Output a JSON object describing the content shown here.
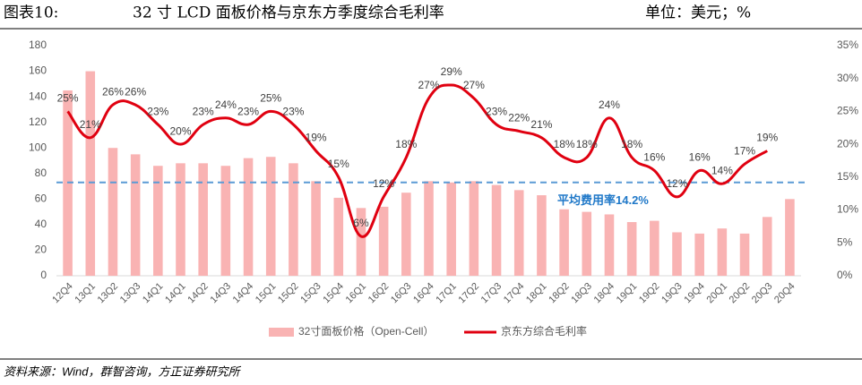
{
  "chart_data": {
    "type": "combo",
    "figure_label": "图表10:",
    "title": "32 寸 LCD 面板价格与京东方季度综合毛利率",
    "unit_note": "单位：美元；%",
    "source": "资料来源：Wind，群智咨询，方正证券研究所",
    "categories": [
      "12Q4",
      "13Q1",
      "13Q2",
      "13Q3",
      "14Q1",
      "14Q1",
      "14Q2",
      "14Q3",
      "14Q4",
      "15Q1",
      "15Q2",
      "15Q3",
      "15Q4",
      "16Q1",
      "16Q2",
      "16Q3",
      "16Q4",
      "17Q1",
      "17Q2",
      "17Q3",
      "17Q4",
      "18Q1",
      "18Q2",
      "18Q3",
      "18Q4",
      "19Q1",
      "19Q2",
      "19Q3",
      "19Q4",
      "20Q1",
      "20Q2",
      "20Q3",
      "20Q4"
    ],
    "series": [
      {
        "name": "32寸面板价格（Open-Cell）",
        "type": "bar",
        "color": "#f9b3b3",
        "values": [
          145,
          160,
          100,
          95,
          86,
          88,
          88,
          86,
          92,
          93,
          88,
          74,
          61,
          53,
          54,
          65,
          74,
          73,
          74,
          71,
          67,
          63,
          52,
          50,
          48,
          42,
          43,
          34,
          33,
          37,
          33,
          46,
          60
        ]
      },
      {
        "name": "京东方综合毛利率",
        "type": "line",
        "axis": "y2",
        "color": "#e00010",
        "values": [
          25,
          21,
          26,
          26,
          23,
          20,
          23,
          24,
          23,
          25,
          23,
          19,
          15,
          6,
          12,
          18,
          27,
          29,
          27,
          23,
          22,
          21,
          18,
          18,
          24,
          18,
          16,
          12,
          16,
          14,
          17,
          19,
          null
        ],
        "value_labels": [
          "25%",
          "21%",
          "26%",
          "26%",
          "23%",
          "20%",
          "23%",
          "24%",
          "23%",
          "25%",
          "23%",
          "19%",
          "15%",
          "6%",
          "12%",
          "18%",
          "27%",
          "29%",
          "27%",
          "23%",
          "22%",
          "21%",
          "18%",
          "18%",
          "24%",
          "18%",
          "16%",
          "12%",
          "16%",
          "14%",
          "17%",
          "19%",
          null
        ]
      }
    ],
    "reference": {
      "value": 14.2,
      "axis": "y2",
      "label": "平均费用率14.2%",
      "color": "#5b9bd5"
    },
    "ylim": [
      0,
      180
    ],
    "yticks": [
      0,
      20,
      40,
      60,
      80,
      100,
      120,
      140,
      160,
      180
    ],
    "y2lim": [
      0,
      35
    ],
    "y2ticks": [
      {
        "value": 0,
        "label": "0%"
      },
      {
        "value": 5,
        "label": "5%"
      },
      {
        "value": 10,
        "label": "10%"
      },
      {
        "value": 15,
        "label": "15%"
      },
      {
        "value": 20,
        "label": "20%"
      },
      {
        "value": 25,
        "label": "25%"
      },
      {
        "value": 30,
        "label": "30%"
      },
      {
        "value": 35,
        "label": "35%"
      }
    ],
    "grid": false,
    "legend": "bottom"
  }
}
